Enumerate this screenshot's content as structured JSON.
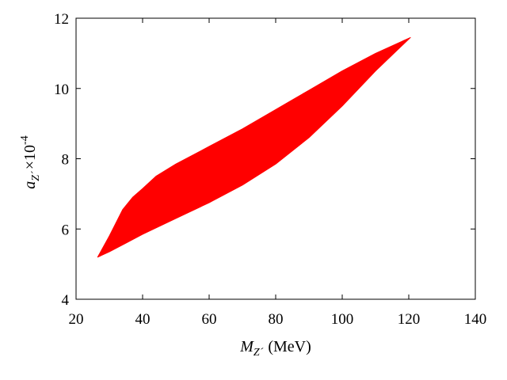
{
  "chart_data": {
    "type": "area",
    "xlabel": {
      "symbol": "M",
      "subscript": "Z´",
      "unit": "(MeV)"
    },
    "ylabel": {
      "symbol": "a",
      "subscript": "Z´",
      "scale": "×10",
      "exponent": "-4"
    },
    "xlim": [
      20,
      140
    ],
    "ylim": [
      4,
      12
    ],
    "xticks": [
      "20",
      "40",
      "60",
      "80",
      "100",
      "120",
      "140"
    ],
    "yticks": [
      "4",
      "6",
      "8",
      "10",
      "12"
    ],
    "grid": false,
    "legend": "none",
    "region_color": "#ff0000",
    "region_upper": [
      {
        "x": 26.5,
        "y": 5.2
      },
      {
        "x": 30,
        "y": 5.8
      },
      {
        "x": 34,
        "y": 6.55
      },
      {
        "x": 37,
        "y": 6.9
      },
      {
        "x": 40,
        "y": 7.15
      },
      {
        "x": 44,
        "y": 7.5
      },
      {
        "x": 50,
        "y": 7.85
      },
      {
        "x": 60,
        "y": 8.35
      },
      {
        "x": 70,
        "y": 8.85
      },
      {
        "x": 80,
        "y": 9.4
      },
      {
        "x": 90,
        "y": 9.95
      },
      {
        "x": 100,
        "y": 10.5
      },
      {
        "x": 110,
        "y": 11.0
      },
      {
        "x": 120.5,
        "y": 11.45
      }
    ],
    "region_lower": [
      {
        "x": 26.5,
        "y": 5.2
      },
      {
        "x": 30,
        "y": 5.35
      },
      {
        "x": 35,
        "y": 5.6
      },
      {
        "x": 40,
        "y": 5.85
      },
      {
        "x": 50,
        "y": 6.3
      },
      {
        "x": 60,
        "y": 6.75
      },
      {
        "x": 70,
        "y": 7.25
      },
      {
        "x": 80,
        "y": 7.85
      },
      {
        "x": 90,
        "y": 8.6
      },
      {
        "x": 100,
        "y": 9.5
      },
      {
        "x": 110,
        "y": 10.5
      },
      {
        "x": 120.5,
        "y": 11.45
      }
    ]
  }
}
